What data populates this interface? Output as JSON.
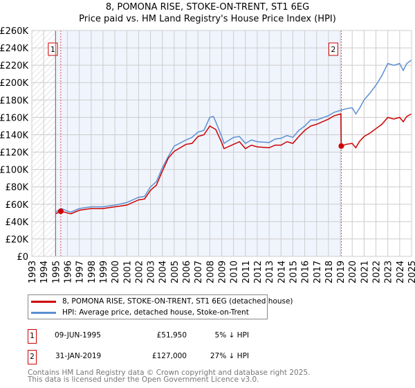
{
  "chart_data": {
    "type": "line",
    "title": "8, POMONA RISE, STOKE-ON-TRENT, ST1 6EG",
    "subtitle": "Price paid vs. HM Land Registry's House Price Index (HPI)",
    "xlim": [
      1993,
      2025
    ],
    "ylim": [
      0,
      260000
    ],
    "x_ticks": [
      "1993",
      "1994",
      "1995",
      "1996",
      "1997",
      "1998",
      "1999",
      "2000",
      "2001",
      "2002",
      "2003",
      "2004",
      "2005",
      "2006",
      "2007",
      "2008",
      "2009",
      "2010",
      "2011",
      "2012",
      "2013",
      "2014",
      "2015",
      "2016",
      "2017",
      "2018",
      "2019",
      "2020",
      "2021",
      "2022",
      "2023",
      "2024",
      "2025"
    ],
    "y_ticks": [
      {
        "v": 0,
        "label": "£0"
      },
      {
        "v": 20000,
        "label": "£20K"
      },
      {
        "v": 40000,
        "label": "£40K"
      },
      {
        "v": 60000,
        "label": "£60K"
      },
      {
        "v": 80000,
        "label": "£80K"
      },
      {
        "v": 100000,
        "label": "£100K"
      },
      {
        "v": 120000,
        "label": "£120K"
      },
      {
        "v": 140000,
        "label": "£140K"
      },
      {
        "v": 160000,
        "label": "£160K"
      },
      {
        "v": 180000,
        "label": "£180K"
      },
      {
        "v": 200000,
        "label": "£200K"
      },
      {
        "v": 220000,
        "label": "£220K"
      },
      {
        "v": 240000,
        "label": "£240K"
      },
      {
        "v": 260000,
        "label": "£260K"
      }
    ],
    "grid": true,
    "colors": {
      "property": "#cc0000",
      "hpi": "#5b8fd0",
      "shade": "#f0f4fd"
    },
    "series": [
      {
        "name": "8, POMONA RISE, STOKE-ON-TRENT, ST1 6EG (detached house)",
        "color": "#cc0000",
        "x": [
          1995.0,
          1995.44,
          1996,
          1996.3,
          1997,
          1998,
          1999,
          2000,
          2001,
          2002,
          2002.5,
          2003,
          2003.5,
          2004,
          2004.5,
          2005,
          2006,
          2006.5,
          2007,
          2007.5,
          2008,
          2008.5,
          2009,
          2009.2,
          2010,
          2010.5,
          2011,
          2011.5,
          2012,
          2013,
          2013.5,
          2014,
          2014.5,
          2015,
          2015.5,
          2016,
          2016.5,
          2017,
          2018,
          2018.5,
          2019.05,
          2019.08,
          2019.5,
          2020,
          2020.3,
          2020.6,
          2021,
          2021.5,
          2022,
          2022.5,
          2023,
          2023.5,
          2024,
          2024.3,
          2024.6,
          2025
        ],
        "y": [
          49000,
          51950,
          50000,
          49000,
          53000,
          55000,
          55000,
          57000,
          59000,
          65000,
          66000,
          76000,
          82000,
          98000,
          113000,
          121000,
          129000,
          130000,
          138000,
          140000,
          150000,
          146000,
          131000,
          124000,
          129000,
          132000,
          124000,
          128000,
          126000,
          125000,
          128000,
          128000,
          132000,
          130000,
          138000,
          145000,
          150000,
          152000,
          158000,
          162000,
          164000,
          127000,
          129000,
          130000,
          125000,
          132000,
          138000,
          142000,
          147000,
          152000,
          160000,
          158000,
          160000,
          155000,
          161000,
          164000
        ]
      },
      {
        "name": "HPI: Average price, detached house, Stoke-on-Trent",
        "color": "#5b8fd0",
        "x": [
          1995.0,
          1995.5,
          1996,
          1996.3,
          1997,
          1998,
          1999,
          2000,
          2001,
          2002,
          2002.5,
          2003,
          2003.5,
          2004,
          2004.5,
          2005,
          2006,
          2006.5,
          2007,
          2007.5,
          2008,
          2008.3,
          2008.5,
          2009,
          2009.2,
          2010,
          2010.5,
          2011,
          2011.5,
          2012,
          2013,
          2013.5,
          2014,
          2014.5,
          2015,
          2015.5,
          2016,
          2016.5,
          2017,
          2018,
          2018.5,
          2019,
          2019.5,
          2020,
          2020.3,
          2020.6,
          2021,
          2021.5,
          2022,
          2022.5,
          2023,
          2023.5,
          2024,
          2024.3,
          2024.6,
          2025
        ],
        "y": [
          51000,
          55000,
          52000,
          51000,
          55000,
          57000,
          57000,
          59000,
          62000,
          68000,
          69000,
          80000,
          86000,
          102000,
          115000,
          127000,
          134000,
          137000,
          143000,
          145000,
          160000,
          161000,
          155000,
          138000,
          130000,
          137000,
          138000,
          130000,
          134000,
          132000,
          131000,
          135000,
          136000,
          139000,
          137000,
          145000,
          150000,
          157000,
          157000,
          162000,
          166000,
          168000,
          170000,
          171000,
          164000,
          170000,
          180000,
          188000,
          197000,
          208000,
          222000,
          220000,
          222000,
          214000,
          222000,
          226000
        ]
      }
    ],
    "sales": [
      {
        "id": "1",
        "x": 1995.44,
        "y": 51950
      },
      {
        "id": "2",
        "x": 2019.08,
        "y": 127000
      }
    ]
  },
  "legend": {
    "property": "8, POMONA RISE, STOKE-ON-TRENT, ST1 6EG (detached house)",
    "hpi": "HPI: Average price, detached house, Stoke-on-Trent"
  },
  "transactions": [
    {
      "id": "1",
      "date": "09-JUN-1995",
      "price": "£51,950",
      "hpi": "5% ↓ HPI"
    },
    {
      "id": "2",
      "date": "31-JAN-2019",
      "price": "£127,000",
      "hpi": "27% ↓ HPI"
    }
  ],
  "footer": {
    "line1": "Contains HM Land Registry data © Crown copyright and database right 2025.",
    "line2": "This data is licensed under the Open Government Licence v3.0."
  }
}
